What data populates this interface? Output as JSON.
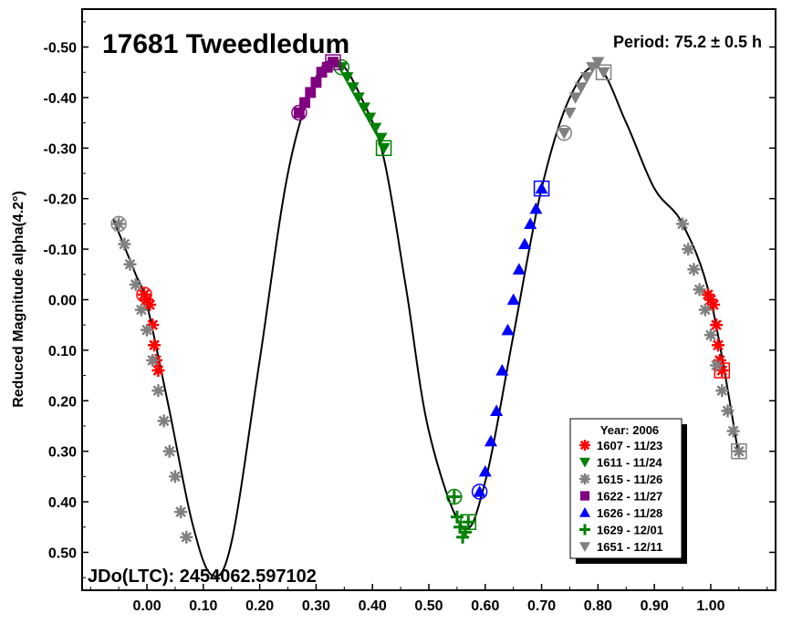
{
  "chart_data": {
    "type": "scatter",
    "title": "17681 Tweedledum",
    "period_label": "Period: 75.2 ± 0.5 h",
    "ylabel": "Reduced Magnitude alpha(4.2°)",
    "xlabel": "",
    "footer": "JDo(LTC): 2454062.597102",
    "xlim": [
      -0.115,
      1.115
    ],
    "ylim": [
      -0.575,
      0.575
    ],
    "y_inverted": true,
    "grid": false,
    "legend_position": "bottom-right",
    "x_ticks": [
      "0.00",
      "0.10",
      "0.20",
      "0.30",
      "0.40",
      "0.50",
      "0.60",
      "0.70",
      "0.80",
      "0.90",
      "1.00"
    ],
    "y_ticks": [
      "-0.50",
      "-0.40",
      "-0.30",
      "-0.20",
      "-0.10",
      "0.00",
      "0.10",
      "0.20",
      "0.30",
      "0.40",
      "0.50"
    ],
    "legend_title": "Year: 2006",
    "series": [
      {
        "name": "1607 - 11/23",
        "color": "#ff0000",
        "marker": "asterisk",
        "x": [
          -0.005,
          0.0,
          0.005,
          0.01,
          0.013,
          0.016,
          0.02,
          0.995,
          1.0,
          1.005,
          1.01,
          1.013,
          1.016,
          1.02
        ],
        "y": [
          -0.01,
          0.0,
          0.01,
          0.05,
          0.09,
          0.12,
          0.14,
          -0.01,
          0.0,
          0.01,
          0.05,
          0.09,
          0.12,
          0.14
        ]
      },
      {
        "name": "1611 - 11/24",
        "color": "#008000",
        "marker": "triangle-down",
        "x": [
          0.345,
          0.355,
          0.365,
          0.375,
          0.385,
          0.395,
          0.405,
          0.415,
          0.42
        ],
        "y": [
          -0.46,
          -0.44,
          -0.42,
          -0.4,
          -0.38,
          -0.36,
          -0.34,
          -0.32,
          -0.3
        ]
      },
      {
        "name": "1615 - 11/26",
        "color": "#808080",
        "marker": "asterisk",
        "x": [
          -0.05,
          -0.04,
          -0.03,
          -0.02,
          -0.01,
          0.0,
          0.01,
          0.02,
          0.03,
          0.04,
          0.05,
          0.06,
          0.07,
          0.95,
          0.96,
          0.97,
          0.98,
          0.99,
          1.0,
          1.01,
          1.02,
          1.03,
          1.04,
          1.05
        ],
        "y": [
          -0.15,
          -0.11,
          -0.07,
          -0.03,
          0.02,
          0.06,
          0.12,
          0.18,
          0.24,
          0.3,
          0.35,
          0.42,
          0.47,
          -0.15,
          -0.1,
          -0.06,
          -0.02,
          0.02,
          0.07,
          0.13,
          0.18,
          0.22,
          0.26,
          0.3
        ]
      },
      {
        "name": "1622 - 11/27",
        "color": "#800080",
        "marker": "square",
        "x": [
          0.27,
          0.28,
          0.29,
          0.3,
          0.31,
          0.32,
          0.33
        ],
        "y": [
          -0.37,
          -0.39,
          -0.41,
          -0.43,
          -0.45,
          -0.46,
          -0.47
        ]
      },
      {
        "name": "1626 - 11/28",
        "color": "#0000ff",
        "marker": "triangle-up",
        "x": [
          0.59,
          0.6,
          0.61,
          0.62,
          0.63,
          0.64,
          0.65,
          0.66,
          0.67,
          0.68,
          0.69,
          0.7
        ],
        "y": [
          0.38,
          0.34,
          0.28,
          0.22,
          0.14,
          0.06,
          0.0,
          -0.06,
          -0.11,
          -0.15,
          -0.18,
          -0.22
        ]
      },
      {
        "name": "1629 - 12/01",
        "color": "#008000",
        "marker": "plus",
        "x": [
          0.545,
          0.55,
          0.555,
          0.56,
          0.565,
          0.57
        ],
        "y": [
          0.39,
          0.43,
          0.45,
          0.47,
          0.46,
          0.44
        ]
      },
      {
        "name": "1651 - 12/11",
        "color": "#808080",
        "marker": "triangle-down",
        "x": [
          0.74,
          0.75,
          0.76,
          0.77,
          0.78,
          0.79,
          0.8,
          0.81
        ],
        "y": [
          -0.33,
          -0.37,
          -0.4,
          -0.42,
          -0.44,
          -0.46,
          -0.47,
          -0.45
        ]
      }
    ],
    "fit_curve": {
      "color": "#000000",
      "x": [
        -0.06,
        -0.02,
        0.0,
        0.04,
        0.08,
        0.115,
        0.15,
        0.2,
        0.25,
        0.3,
        0.34,
        0.38,
        0.42,
        0.46,
        0.5,
        0.56,
        0.6,
        0.65,
        0.7,
        0.75,
        0.8,
        0.85,
        0.9,
        0.95,
        1.0,
        1.05
      ],
      "y": [
        -0.16,
        -0.05,
        0.01,
        0.22,
        0.44,
        0.545,
        0.48,
        0.12,
        -0.25,
        -0.44,
        -0.47,
        -0.4,
        -0.28,
        -0.02,
        0.26,
        0.45,
        0.36,
        0.07,
        -0.22,
        -0.4,
        -0.46,
        -0.35,
        -0.22,
        -0.15,
        0.0,
        0.31
      ]
    }
  }
}
